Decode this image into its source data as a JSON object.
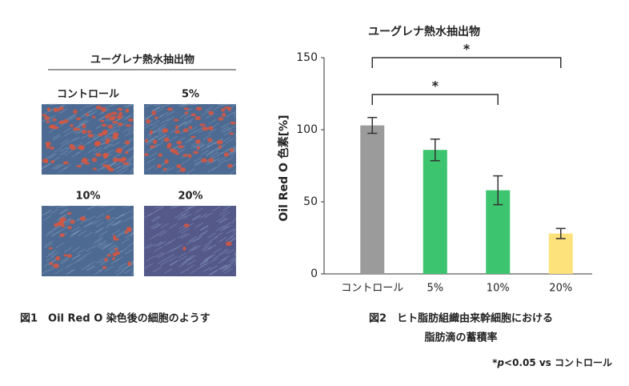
{
  "left_panel": {
    "title": "ユーグレナ熱水抽出物",
    "images": [
      {
        "label": "コントロール"
      },
      {
        "label": "5%"
      },
      {
        "label": "10%"
      },
      {
        "label": "20%"
      }
    ],
    "caption": "図1　Oil Red O 染色後の細胞のようす"
  },
  "chart_data": {
    "type": "bar",
    "title": "ユーグレナ熱水抽出物",
    "y_label": "Oil Red O 色素[%]",
    "categories": [
      "コントロール",
      "5%",
      "10%",
      "20%"
    ],
    "values": [
      103,
      86,
      58,
      28
    ],
    "errors": [
      5.5,
      7.5,
      10,
      3.5
    ],
    "colors": [
      "#9b9b9b",
      "#3cc46e",
      "#3cc46e",
      "#fde17a"
    ],
    "ylim": [
      0,
      150
    ],
    "yticks": [
      0,
      50,
      100,
      150
    ],
    "significance": [
      {
        "from": "コントロール",
        "to": "20%",
        "label": "*"
      },
      {
        "from": "コントロール",
        "to": "10%",
        "label": "*"
      }
    ],
    "caption": [
      "図2　ヒト脂肪組織由来幹細胞における",
      "脂肪滴の蓄積率"
    ],
    "footnote": [
      "*",
      "p",
      "<0.05 vs コントロール"
    ]
  }
}
